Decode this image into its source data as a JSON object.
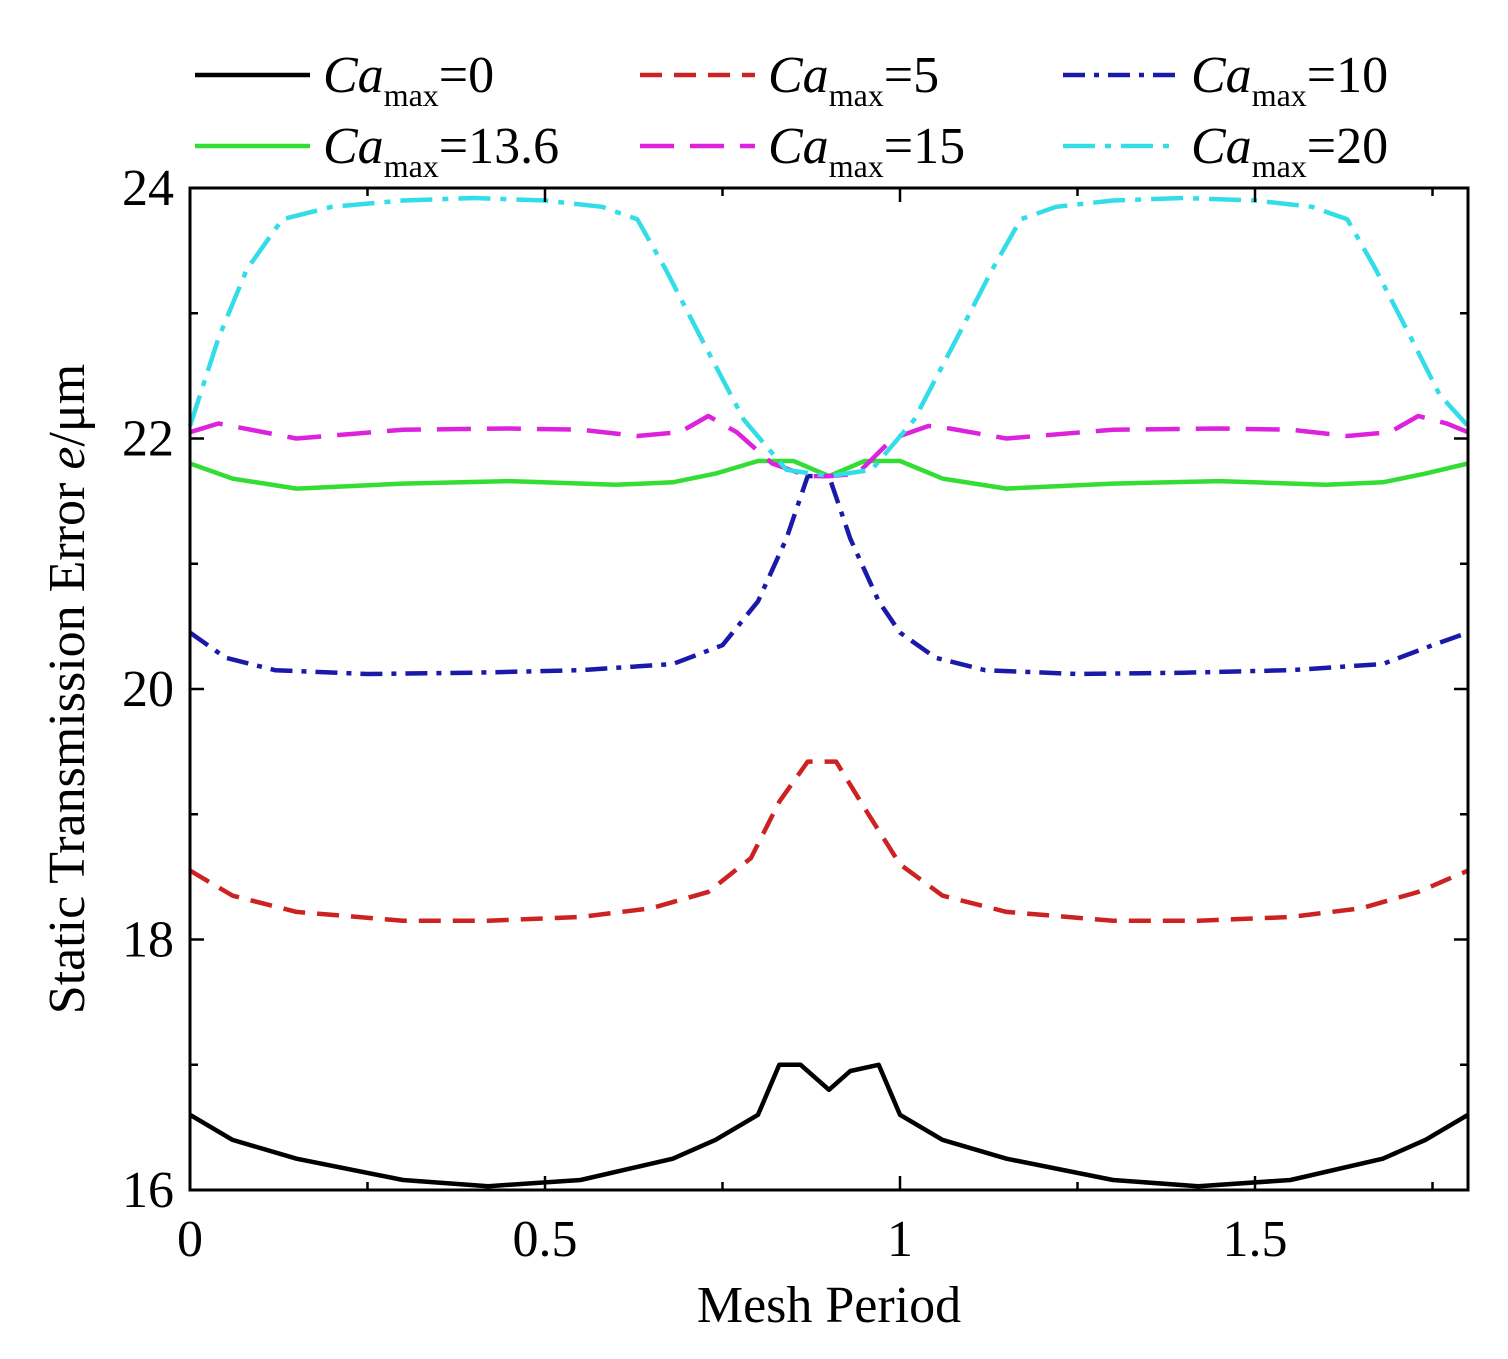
{
  "chart_data": {
    "type": "line",
    "title": "",
    "xlabel": "Mesh Period",
    "ylabel_prefix": "Static Transmission Error ",
    "ylabel_var": "e",
    "ylabel_unit": "/μm",
    "xlim": [
      0,
      1.8
    ],
    "ylim": [
      16,
      24
    ],
    "xticks": [
      0,
      0.5,
      1,
      1.5
    ],
    "xtick_labels": [
      "0",
      "0.5",
      "1",
      "1.5"
    ],
    "yticks": [
      16,
      18,
      20,
      22,
      24
    ],
    "ytick_labels": [
      "16",
      "18",
      "20",
      "22",
      "24"
    ],
    "minor_xticks": [
      0.25,
      0.75,
      1.25,
      1.75
    ],
    "minor_yticks": [
      17,
      19,
      21,
      23
    ],
    "legend_position": "top",
    "series": [
      {
        "name": "Ca_max=0",
        "legend_main": "Ca",
        "legend_sub": "max",
        "legend_value": "=0",
        "color": "#000000",
        "dash": "solid",
        "x": [
          0,
          0.06,
          0.15,
          0.3,
          0.42,
          0.55,
          0.68,
          0.74,
          0.8,
          0.83,
          0.86,
          0.9,
          0.93,
          0.97,
          1.0,
          1.06,
          1.15,
          1.3,
          1.42,
          1.55,
          1.68,
          1.74,
          1.8
        ],
        "y": [
          16.6,
          16.4,
          16.25,
          16.08,
          16.03,
          16.08,
          16.25,
          16.4,
          16.6,
          17.0,
          17.0,
          16.8,
          16.95,
          17.0,
          16.6,
          16.4,
          16.25,
          16.08,
          16.03,
          16.08,
          16.25,
          16.4,
          16.6
        ]
      },
      {
        "name": "Ca_max=5",
        "legend_main": "Ca",
        "legend_sub": "max",
        "legend_value": "=5",
        "color": "#cc2222",
        "dash": "dash",
        "x": [
          0,
          0.06,
          0.15,
          0.3,
          0.42,
          0.55,
          0.65,
          0.73,
          0.79,
          0.83,
          0.87,
          0.91,
          0.95,
          1.0,
          1.06,
          1.15,
          1.3,
          1.42,
          1.55,
          1.65,
          1.73,
          1.8
        ],
        "y": [
          18.55,
          18.35,
          18.22,
          18.15,
          18.15,
          18.18,
          18.25,
          18.38,
          18.65,
          19.1,
          19.42,
          19.42,
          19.05,
          18.6,
          18.35,
          18.22,
          18.15,
          18.15,
          18.18,
          18.25,
          18.38,
          18.55
        ]
      },
      {
        "name": "Ca_max=10",
        "legend_main": "Ca",
        "legend_sub": "max",
        "legend_value": "=10",
        "color": "#1a1aaa",
        "dash": "dashdot",
        "x": [
          0,
          0.05,
          0.12,
          0.25,
          0.4,
          0.55,
          0.68,
          0.75,
          0.8,
          0.84,
          0.87,
          0.9,
          0.93,
          0.97,
          1.0,
          1.05,
          1.12,
          1.25,
          1.4,
          1.55,
          1.68,
          1.75,
          1.8
        ],
        "y": [
          20.45,
          20.25,
          20.15,
          20.12,
          20.13,
          20.15,
          20.2,
          20.35,
          20.7,
          21.2,
          21.7,
          21.7,
          21.2,
          20.7,
          20.45,
          20.25,
          20.15,
          20.12,
          20.13,
          20.15,
          20.2,
          20.35,
          20.45
        ]
      },
      {
        "name": "Ca_max=13.6",
        "legend_main": "Ca",
        "legend_sub": "max",
        "legend_value": "=13.6",
        "color": "#33dd33",
        "dash": "solid",
        "x": [
          0,
          0.06,
          0.15,
          0.3,
          0.45,
          0.6,
          0.68,
          0.74,
          0.8,
          0.85,
          0.9,
          0.95,
          1.0,
          1.06,
          1.15,
          1.3,
          1.45,
          1.6,
          1.68,
          1.74,
          1.8
        ],
        "y": [
          21.8,
          21.68,
          21.6,
          21.64,
          21.66,
          21.63,
          21.65,
          21.72,
          21.82,
          21.82,
          21.7,
          21.82,
          21.82,
          21.68,
          21.6,
          21.64,
          21.66,
          21.63,
          21.65,
          21.72,
          21.8
        ]
      },
      {
        "name": "Ca_max=15",
        "legend_main": "Ca",
        "legend_sub": "max",
        "legend_value": "=15",
        "color": "#dd22dd",
        "dash": "longdash",
        "x": [
          0,
          0.04,
          0.15,
          0.3,
          0.45,
          0.55,
          0.63,
          0.69,
          0.73,
          0.77,
          0.82,
          0.87,
          0.9,
          0.94,
          0.99,
          1.04,
          1.07,
          1.15,
          1.3,
          1.45,
          1.55,
          1.63,
          1.69,
          1.73,
          1.77,
          1.8
        ],
        "y": [
          22.05,
          22.12,
          22.0,
          22.07,
          22.08,
          22.07,
          22.02,
          22.05,
          22.18,
          22.05,
          21.8,
          21.7,
          21.7,
          21.72,
          22.0,
          22.1,
          22.08,
          22.0,
          22.07,
          22.08,
          22.07,
          22.02,
          22.05,
          22.18,
          22.12,
          22.05
        ]
      },
      {
        "name": "Ca_max=20",
        "legend_main": "Ca",
        "legend_sub": "max",
        "legend_value": "=20",
        "color": "#33dde8",
        "dash": "dashdot-long",
        "x": [
          0,
          0.04,
          0.08,
          0.13,
          0.2,
          0.3,
          0.4,
          0.5,
          0.58,
          0.63,
          0.67,
          0.72,
          0.78,
          0.84,
          0.9,
          0.96,
          1.02,
          1.08,
          1.13,
          1.17,
          1.22,
          1.3,
          1.4,
          1.5,
          1.58,
          1.63,
          1.67,
          1.72,
          1.76,
          1.8
        ],
        "y": [
          22.1,
          22.8,
          23.35,
          23.75,
          23.85,
          23.9,
          23.92,
          23.9,
          23.85,
          23.75,
          23.35,
          22.8,
          22.15,
          21.75,
          21.7,
          21.75,
          22.15,
          22.8,
          23.35,
          23.75,
          23.85,
          23.9,
          23.92,
          23.9,
          23.85,
          23.75,
          23.35,
          22.8,
          22.35,
          22.1
        ]
      }
    ]
  }
}
